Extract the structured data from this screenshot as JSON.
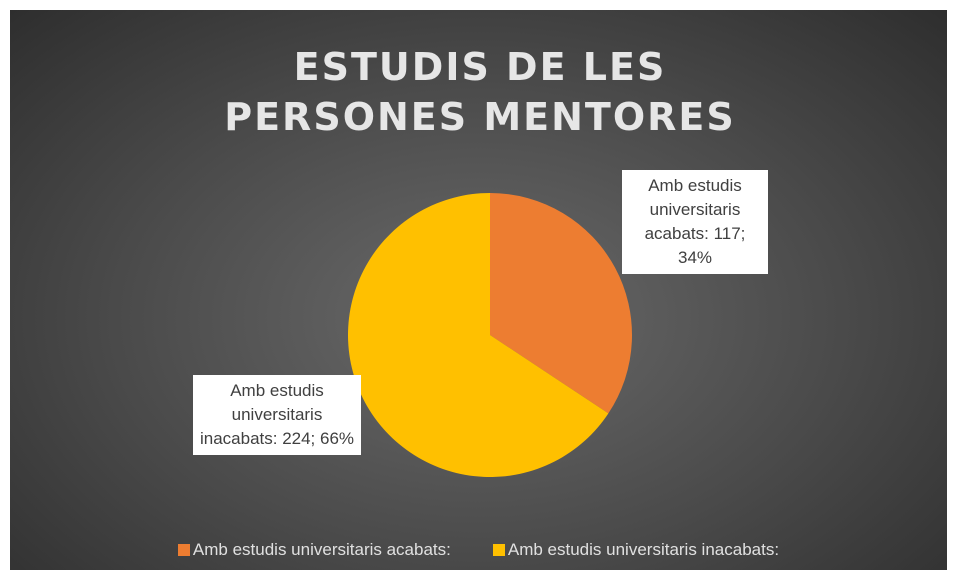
{
  "chart_data": {
    "type": "pie",
    "title": "ESTUDIS DE LES PERSONES MENTORES",
    "categories": [
      "Amb estudis universitaris acabats:",
      "Amb estudis universitaris inacabats:"
    ],
    "values": [
      117,
      224
    ],
    "value_labels": [
      "Amb estudis universitaris acabats: 117; 34%",
      "Amb estudis universitaris inacabats: 224; 66%"
    ],
    "colors": [
      "#ed7d31",
      "#ffc000"
    ],
    "legend": "bottom"
  }
}
